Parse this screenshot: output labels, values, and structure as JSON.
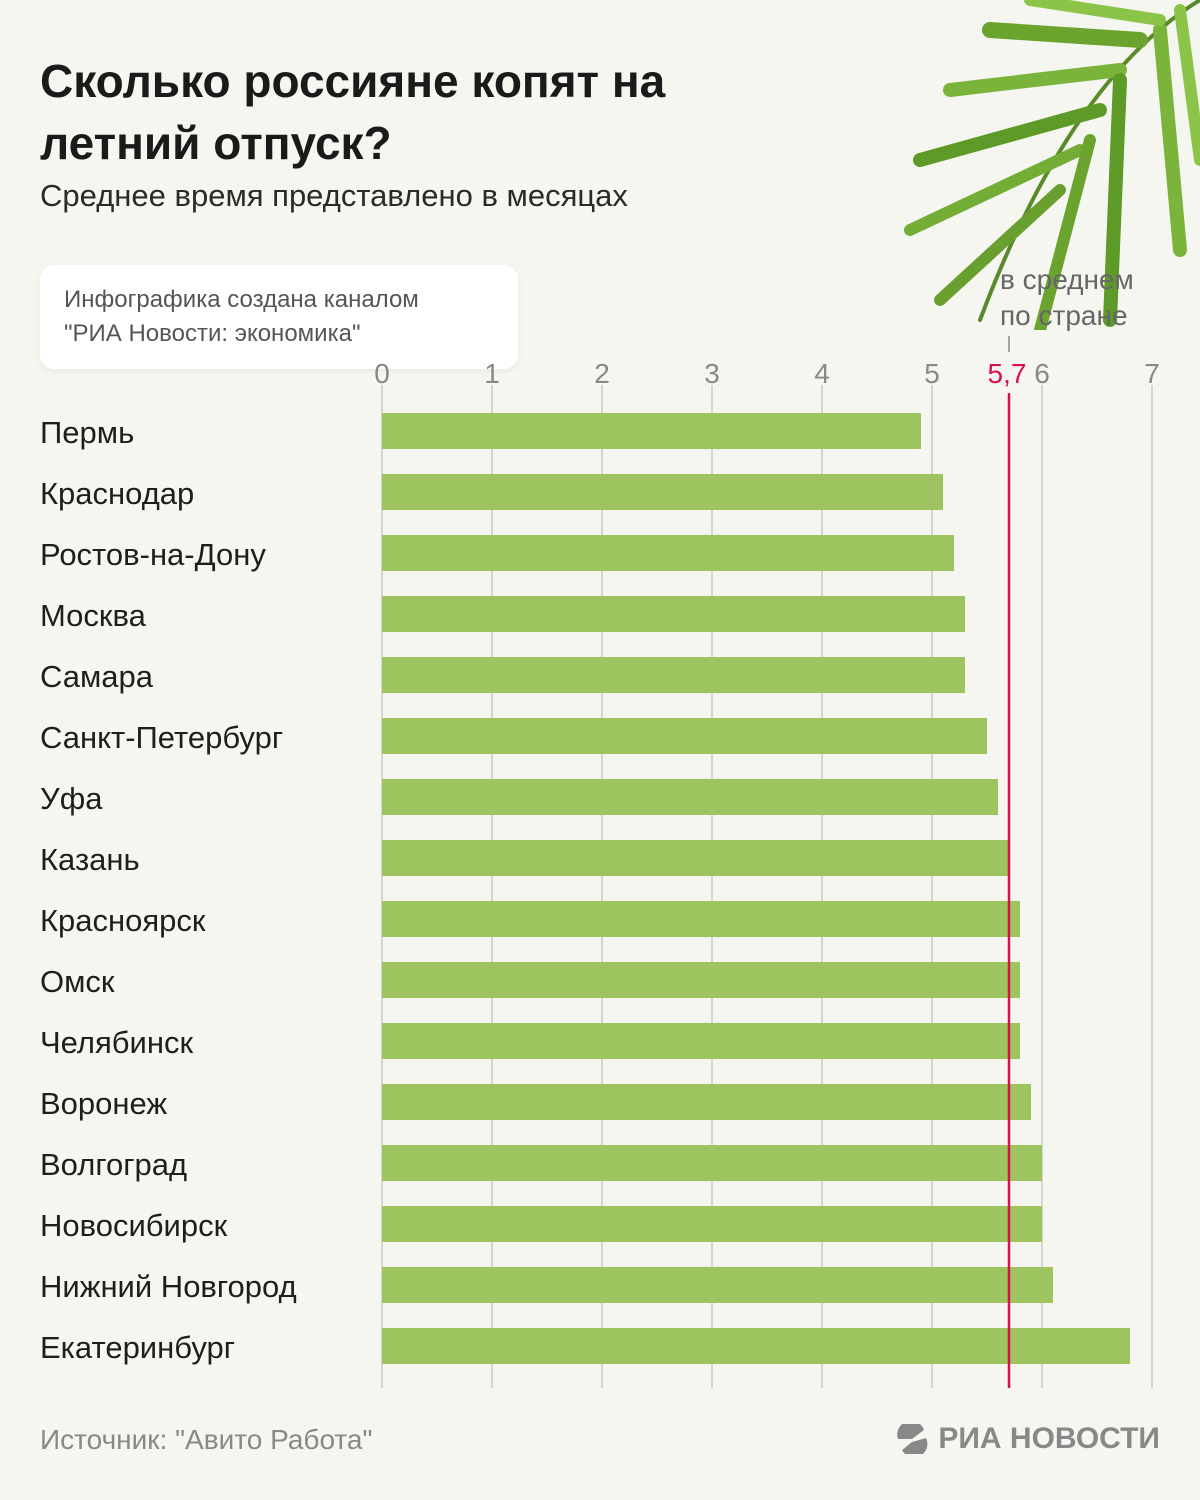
{
  "title": "Сколько россияне копят на летний отпуск?",
  "subtitle": "Среднее время представлено в месяцах",
  "credit": {
    "line1": "Инфографика создана каналом",
    "line2": "\"РИА Новости: экономика\""
  },
  "average": {
    "label_line1": "в среднем",
    "label_line2": "по стране",
    "value": 5.7,
    "value_label": "5,7",
    "color": "#d6114f"
  },
  "source": "Источник: \"Авито Работа\"",
  "logo": "РИА НОВОСТИ",
  "chart_data": {
    "type": "bar",
    "orientation": "horizontal",
    "title": "Сколько россияне копят на летний отпуск?",
    "subtitle": "Среднее время представлено в месяцах",
    "categories": [
      "Пермь",
      "Краснодар",
      "Ростов-на-Дону",
      "Москва",
      "Самара",
      "Санкт-Петербург",
      "Уфа",
      "Казань",
      "Красноярск",
      "Омск",
      "Челябинск",
      "Воронеж",
      "Волгоград",
      "Новосибирск",
      "Нижний Новгород",
      "Екатеринбург"
    ],
    "values": [
      4.9,
      5.1,
      5.2,
      5.3,
      5.3,
      5.5,
      5.6,
      5.7,
      5.8,
      5.8,
      5.8,
      5.9,
      6.0,
      6.0,
      6.1,
      6.8
    ],
    "xlim": [
      0,
      7
    ],
    "xticks": [
      "0",
      "1",
      "2",
      "3",
      "4",
      "5",
      "6",
      "7"
    ],
    "grid": true,
    "bar_color": "#9dc45f",
    "reference_line": {
      "value": 5.7,
      "label": "5,7",
      "color": "#d6114f"
    }
  }
}
